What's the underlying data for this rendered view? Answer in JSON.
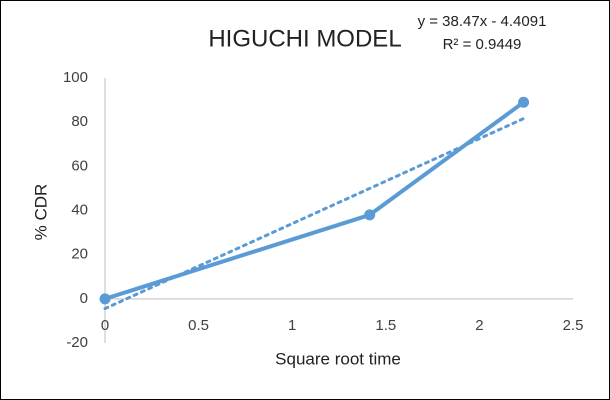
{
  "chart_data": {
    "type": "scatter-line",
    "title": "HIGUCHI MODEL",
    "annotations": [
      "y = 38.47x - 4.4091",
      "R² = 0.9449"
    ],
    "x_label": "Square root time",
    "y_label": "% CDR",
    "series": [
      {
        "x": [
          0,
          1.414,
          2.236
        ],
        "values": [
          0,
          38,
          89
        ],
        "color": "#5b9bd5"
      }
    ],
    "trendline": {
      "x": [
        0,
        2.236
      ],
      "values": [
        -4.4091,
        81.61
      ],
      "color": "#5b9bd5",
      "style": "dotted"
    },
    "xlim": [
      0,
      2.5
    ],
    "xticks": [
      0,
      0.5,
      1,
      1.5,
      2,
      2.5
    ],
    "ylim": [
      -20,
      100
    ],
    "yticks": [
      -20,
      0,
      20,
      40,
      60,
      80,
      100
    ],
    "grid": false
  }
}
